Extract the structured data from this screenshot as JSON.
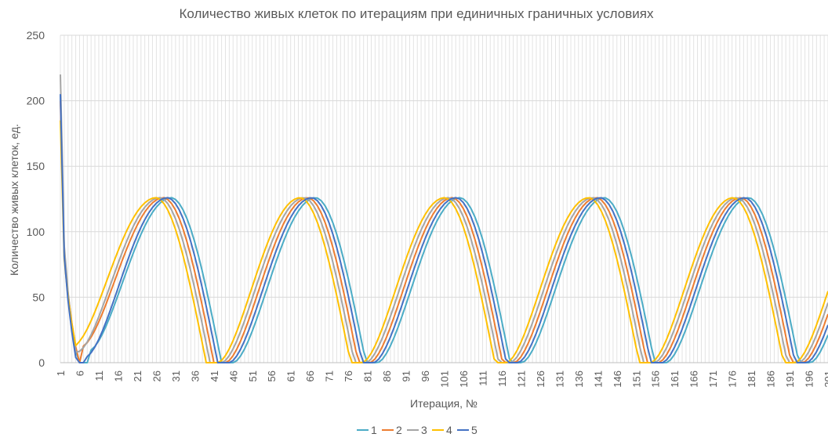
{
  "chart_data": {
    "type": "line",
    "title": "Количество живых клеток по итерациям при единичных граничных условиях",
    "xlabel": "Итерация, №",
    "ylabel": "Количество живых клеток, ед.",
    "ylim": [
      0,
      250
    ],
    "yticks": [
      0,
      50,
      100,
      150,
      200,
      250
    ],
    "xlim": [
      1,
      201
    ],
    "xticks": [
      1,
      6,
      11,
      16,
      21,
      26,
      31,
      36,
      41,
      46,
      51,
      56,
      61,
      66,
      71,
      76,
      81,
      86,
      91,
      96,
      101,
      106,
      111,
      116,
      121,
      126,
      131,
      136,
      141,
      146,
      151,
      156,
      161,
      166,
      171,
      176,
      181,
      186,
      191,
      196,
      201
    ],
    "grid": true,
    "legend_position": "bottom",
    "series_model": {
      "period": 37.6,
      "peak": 126,
      "initial_values": {
        "1": 205,
        "2": 200,
        "3": 220,
        "4": 185,
        "5": 205
      },
      "first_cycle_minimums": {
        "1": 9,
        "2": 12,
        "3": 8,
        "4": 13,
        "5": 4
      }
    },
    "series": [
      {
        "name": "1",
        "color": "#4BACC6",
        "first_min_x": 5,
        "first_peak_x": 30,
        "first_zero_x": 43
      },
      {
        "name": "2",
        "color": "#ED7D31",
        "first_min_x": 5,
        "first_peak_x": 28,
        "first_zero_x": 41
      },
      {
        "name": "3",
        "color": "#A5A5A5",
        "first_min_x": 5,
        "first_peak_x": 27,
        "first_zero_x": 40
      },
      {
        "name": "4",
        "color": "#FFC000",
        "first_min_x": 5,
        "first_peak_x": 26,
        "first_zero_x": 39
      },
      {
        "name": "5",
        "color": "#4472C4",
        "first_min_x": 5,
        "first_peak_x": 29,
        "first_zero_x": 42
      }
    ]
  }
}
